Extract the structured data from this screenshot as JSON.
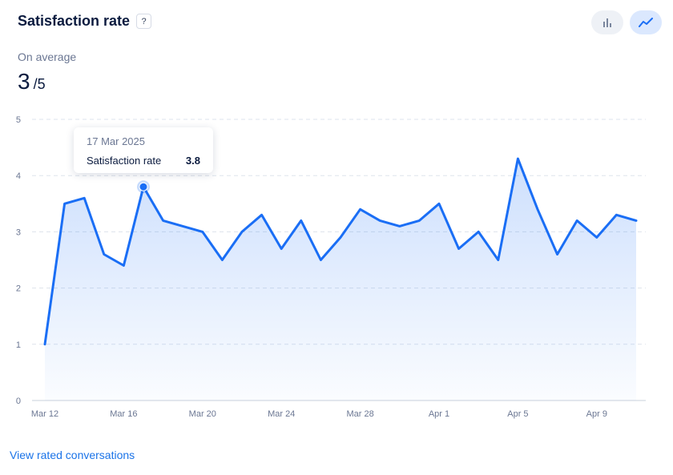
{
  "header": {
    "title": "Satisfaction rate",
    "help_label": "?"
  },
  "view_toggle": {
    "bar_icon": "bar-chart-icon",
    "line_icon": "line-chart-icon",
    "active": "line"
  },
  "summary": {
    "caption": "On average",
    "value": "3",
    "denominator": "/5"
  },
  "tooltip": {
    "date": "17 Mar 2025",
    "label": "Satisfaction rate",
    "value": "3.8"
  },
  "footer": {
    "link_label": "View rated conversations"
  },
  "colors": {
    "line": "#1a6ef5",
    "grid": "#dde3ec",
    "text_muted": "#6b7793",
    "link": "#1a73e8"
  },
  "chart_data": {
    "type": "area",
    "x": [
      "Mar 12",
      "Mar 13",
      "Mar 14",
      "Mar 15",
      "Mar 16",
      "Mar 17",
      "Mar 18",
      "Mar 19",
      "Mar 20",
      "Mar 21",
      "Mar 22",
      "Mar 23",
      "Mar 24",
      "Mar 25",
      "Mar 26",
      "Mar 27",
      "Mar 28",
      "Mar 29",
      "Mar 30",
      "Mar 31",
      "Apr 1",
      "Apr 2",
      "Apr 3",
      "Apr 4",
      "Apr 5",
      "Apr 6",
      "Apr 7",
      "Apr 8",
      "Apr 9",
      "Apr 10",
      "Apr 11"
    ],
    "values": [
      1.0,
      3.5,
      3.6,
      2.6,
      2.4,
      3.8,
      3.2,
      3.1,
      3.0,
      2.5,
      3.0,
      3.3,
      2.7,
      3.2,
      2.5,
      2.9,
      3.4,
      3.2,
      3.1,
      3.2,
      3.5,
      2.7,
      3.0,
      2.5,
      4.3,
      3.4,
      2.6,
      3.2,
      2.9,
      3.3,
      3.2
    ],
    "x_ticks": [
      "Mar 12",
      "Mar 16",
      "Mar 20",
      "Mar 24",
      "Mar 28",
      "Apr 1",
      "Apr 5",
      "Apr 9"
    ],
    "y_ticks": [
      0,
      1,
      2,
      3,
      4,
      5
    ],
    "ylim": [
      0,
      5
    ],
    "highlighted": "Mar 17",
    "grid": true
  }
}
